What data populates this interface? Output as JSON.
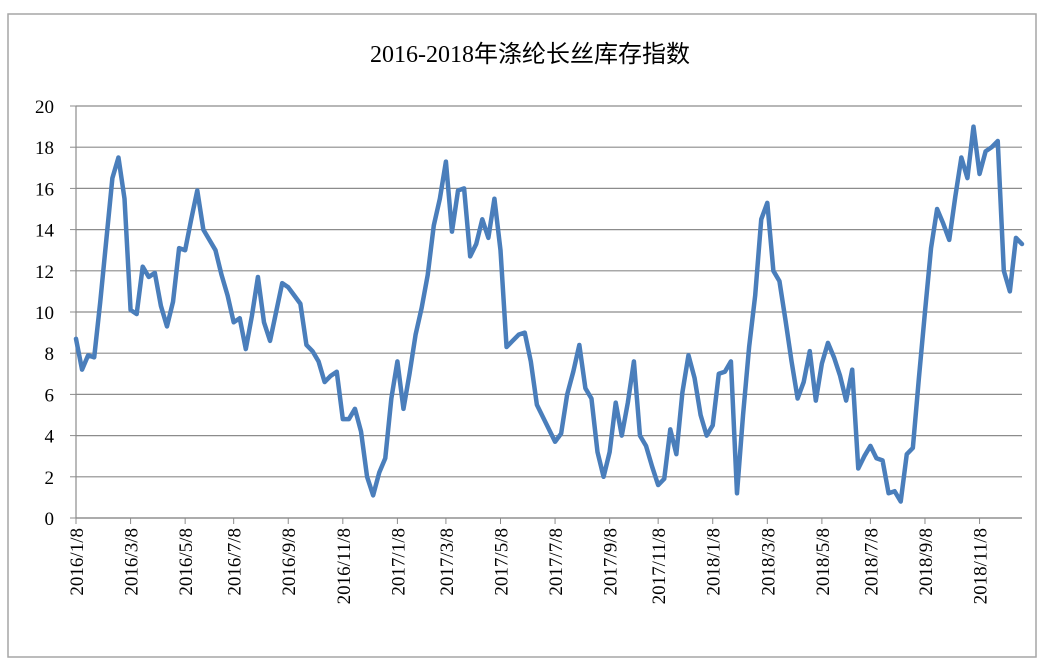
{
  "chart_data": {
    "type": "line",
    "title": "2016-2018年涤纶长丝库存指数",
    "categories": [
      "2016/1/8",
      null,
      null,
      null,
      null,
      null,
      null,
      null,
      null,
      "2016/3/8",
      null,
      null,
      null,
      null,
      null,
      null,
      null,
      null,
      "2016/5/8",
      null,
      null,
      null,
      null,
      null,
      null,
      null,
      "2016/7/8",
      null,
      null,
      null,
      null,
      null,
      null,
      null,
      null,
      "2016/9/8",
      null,
      null,
      null,
      null,
      null,
      null,
      null,
      null,
      "2016/11/8",
      null,
      null,
      null,
      null,
      null,
      null,
      null,
      null,
      "2017/1/8",
      null,
      null,
      null,
      null,
      null,
      null,
      null,
      "2017/3/8",
      null,
      null,
      null,
      null,
      null,
      null,
      null,
      null,
      "2017/5/8",
      null,
      null,
      null,
      null,
      null,
      null,
      null,
      null,
      "2017/7/8",
      null,
      null,
      null,
      null,
      null,
      null,
      null,
      null,
      "2017/9/8",
      null,
      null,
      null,
      null,
      null,
      null,
      null,
      "2017/11/8",
      null,
      null,
      null,
      null,
      null,
      null,
      null,
      null,
      "2018/1/8",
      null,
      null,
      null,
      null,
      null,
      null,
      null,
      null,
      "2018/3/8",
      null,
      null,
      null,
      null,
      null,
      null,
      null,
      null,
      "2018/5/8",
      null,
      null,
      null,
      null,
      null,
      null,
      null,
      "2018/7/8",
      null,
      null,
      null,
      null,
      null,
      null,
      null,
      null,
      "2018/9/8",
      null,
      null,
      null,
      null,
      null,
      null,
      null,
      null,
      "2018/11/8",
      null,
      null,
      null,
      null,
      null,
      null,
      null
    ],
    "series": [
      {
        "name": "涤纶长丝库存指数",
        "color": "#4a7ebb",
        "values": [
          8.7,
          7.2,
          7.9,
          7.8,
          10.5,
          13.5,
          16.5,
          17.5,
          15.5,
          10.1,
          9.9,
          12.2,
          11.7,
          11.9,
          10.3,
          9.3,
          10.5,
          13.1,
          13.0,
          14.5,
          15.9,
          14.0,
          13.5,
          13.0,
          11.8,
          10.8,
          9.5,
          9.7,
          8.2,
          9.8,
          11.7,
          9.5,
          8.6,
          10.0,
          11.4,
          11.2,
          10.8,
          10.4,
          8.4,
          8.1,
          7.6,
          6.6,
          6.9,
          7.1,
          4.8,
          4.8,
          5.3,
          4.2,
          2.0,
          1.1,
          2.2,
          2.9,
          5.8,
          7.6,
          5.3,
          7.0,
          8.9,
          10.2,
          11.8,
          14.2,
          15.5,
          17.3,
          13.9,
          15.9,
          16.0,
          12.7,
          13.3,
          14.5,
          13.6,
          15.5,
          13.0,
          8.3,
          8.6,
          8.9,
          9.0,
          7.6,
          5.5,
          4.9,
          4.3,
          3.7,
          4.1,
          6.0,
          7.1,
          8.4,
          6.3,
          5.8,
          3.2,
          2.0,
          3.2,
          5.6,
          4.0,
          5.6,
          7.6,
          4.0,
          3.5,
          2.5,
          1.6,
          1.9,
          4.3,
          3.1,
          6.1,
          7.9,
          6.8,
          5.0,
          4.0,
          4.5,
          7.0,
          7.1,
          7.6,
          1.2,
          5.0,
          8.3,
          10.8,
          14.5,
          15.3,
          12.0,
          11.5,
          9.6,
          7.6,
          5.8,
          6.6,
          8.1,
          5.7,
          7.5,
          8.5,
          7.8,
          6.9,
          5.7,
          7.2,
          2.4,
          3.0,
          3.5,
          2.9,
          2.8,
          1.2,
          1.3,
          0.8,
          3.1,
          3.4,
          6.8,
          10.0,
          13.1,
          15.0,
          14.3,
          13.5,
          15.6,
          17.5,
          16.5,
          19.0,
          16.7,
          17.8,
          18.0,
          18.3,
          12.0,
          11.0,
          13.6,
          13.3
        ]
      }
    ],
    "ylim": [
      0,
      20
    ],
    "yticks": [
      0,
      2,
      4,
      6,
      8,
      10,
      12,
      14,
      16,
      18,
      20
    ],
    "grid": true
  }
}
